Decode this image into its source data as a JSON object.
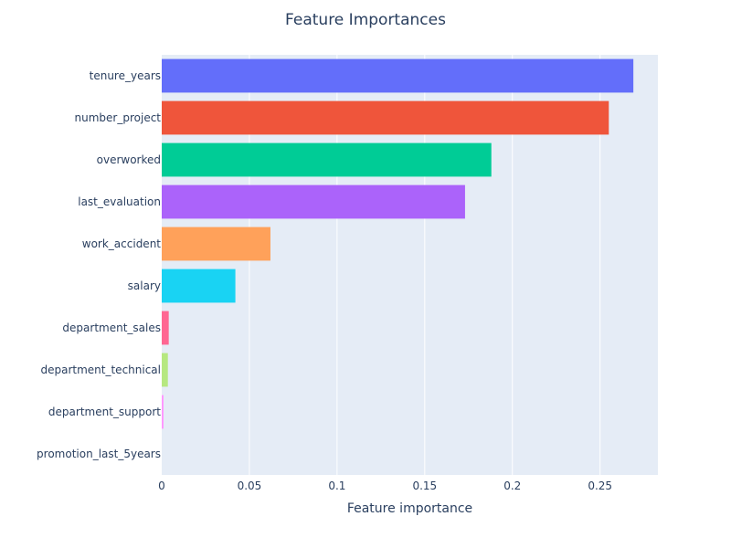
{
  "chart_data": {
    "type": "bar",
    "orientation": "horizontal",
    "title": "Feature Importances",
    "xlabel": "Feature importance",
    "ylabel": "",
    "categories": [
      "tenure_years",
      "number_project",
      "overworked",
      "last_evaluation",
      "work_accident",
      "salary",
      "department_sales",
      "department_technical",
      "department_support",
      "promotion_last_5years"
    ],
    "values": [
      0.269,
      0.255,
      0.188,
      0.173,
      0.062,
      0.042,
      0.004,
      0.0035,
      0.001,
      0.0
    ],
    "colors": [
      "#636efa",
      "#EF553B",
      "#00cc96",
      "#ab63fa",
      "#FFA15A",
      "#19d3f3",
      "#FF6692",
      "#B6E880",
      "#FF97FF",
      "#FECB52"
    ],
    "xlim": [
      0,
      0.283
    ],
    "xticks": [
      0,
      0.05,
      0.1,
      0.15,
      0.2,
      0.25
    ],
    "xtick_labels": [
      "0",
      "0.05",
      "0.1",
      "0.15",
      "0.2",
      "0.25"
    ],
    "grid": true,
    "legend": "none",
    "plot_background": "#e5ecf6",
    "gridline_color": "#ffffff"
  }
}
